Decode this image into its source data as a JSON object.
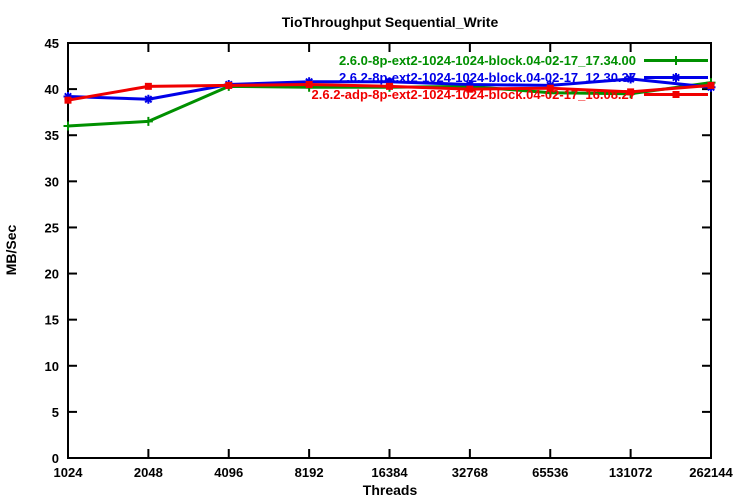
{
  "chart_data": {
    "type": "line",
    "title": "TioThroughput Sequential_Write",
    "xlabel": "Threads",
    "ylabel": "MB/Sec",
    "x_scale": "log2",
    "categories": [
      "1024",
      "2048",
      "4096",
      "8192",
      "16384",
      "32768",
      "65536",
      "131072",
      "262144"
    ],
    "ylim": [
      0,
      45
    ],
    "ytick_step": 5,
    "grid": false,
    "legend_position": "top-right-inside",
    "axis_color": "#000000",
    "background_color": "#ffffff",
    "series": [
      {
        "name": "2.6.0-8p-ext2-1024-1024-block.04-02-17_17.34.00",
        "color": "#009000",
        "marker": "plus",
        "values": [
          36.0,
          36.5,
          40.3,
          40.2,
          40.2,
          40.3,
          39.6,
          39.5,
          40.7
        ]
      },
      {
        "name": "2.6.2-8p-ext2-1024-1024-block.04-02-17_12.30.37",
        "color": "#0000e8",
        "marker": "asterisk",
        "values": [
          39.2,
          38.9,
          40.5,
          40.8,
          40.8,
          40.5,
          40.4,
          41.1,
          40.2
        ]
      },
      {
        "name": "2.6.2-adp-8p-ext2-1024-1024-block.04-02-17_16.08.27",
        "color": "#f00000",
        "marker": "filled-square",
        "values": [
          38.8,
          40.3,
          40.4,
          40.5,
          40.3,
          40.0,
          40.1,
          39.7,
          40.4
        ]
      }
    ]
  }
}
